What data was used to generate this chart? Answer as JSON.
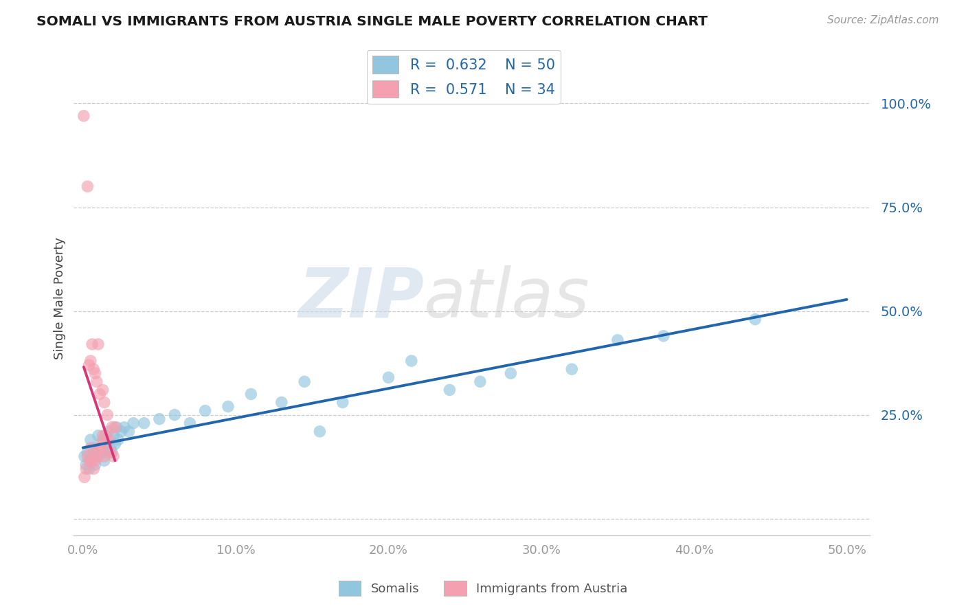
{
  "title": "SOMALI VS IMMIGRANTS FROM AUSTRIA SINGLE MALE POVERTY CORRELATION CHART",
  "source": "Source: ZipAtlas.com",
  "ylabel": "Single Male Poverty",
  "xlim": [
    -0.006,
    0.515
  ],
  "ylim": [
    -0.04,
    1.1
  ],
  "xticks": [
    0.0,
    0.1,
    0.2,
    0.3,
    0.4,
    0.5
  ],
  "xtick_labels": [
    "0.0%",
    "10.0%",
    "20.0%",
    "30.0%",
    "40.0%",
    "50.0%"
  ],
  "ytick_positions": [
    0.0,
    0.25,
    0.5,
    0.75,
    1.0
  ],
  "ytick_labels": [
    "",
    "25.0%",
    "50.0%",
    "75.0%",
    "100.0%"
  ],
  "legend_label1": "Somalis",
  "legend_label2": "Immigrants from Austria",
  "color_blue": "#92c5de",
  "color_pink": "#f4a0b0",
  "color_blue_line": "#2166ac",
  "color_pink_line": "#d63778",
  "somali_x": [
    0.001,
    0.002,
    0.003,
    0.004,
    0.005,
    0.005,
    0.006,
    0.007,
    0.008,
    0.009,
    0.01,
    0.01,
    0.011,
    0.012,
    0.013,
    0.014,
    0.015,
    0.015,
    0.016,
    0.017,
    0.018,
    0.019,
    0.02,
    0.021,
    0.022,
    0.023,
    0.025,
    0.027,
    0.03,
    0.033,
    0.04,
    0.05,
    0.06,
    0.07,
    0.08,
    0.095,
    0.11,
    0.13,
    0.145,
    0.155,
    0.17,
    0.2,
    0.215,
    0.24,
    0.26,
    0.28,
    0.32,
    0.35,
    0.38,
    0.44
  ],
  "somali_y": [
    0.15,
    0.13,
    0.16,
    0.12,
    0.14,
    0.19,
    0.15,
    0.17,
    0.13,
    0.16,
    0.15,
    0.2,
    0.17,
    0.16,
    0.19,
    0.14,
    0.16,
    0.2,
    0.18,
    0.21,
    0.17,
    0.16,
    0.2,
    0.18,
    0.22,
    0.19,
    0.21,
    0.22,
    0.21,
    0.23,
    0.23,
    0.24,
    0.25,
    0.23,
    0.26,
    0.27,
    0.3,
    0.28,
    0.33,
    0.21,
    0.28,
    0.34,
    0.38,
    0.31,
    0.33,
    0.35,
    0.36,
    0.43,
    0.44,
    0.48
  ],
  "austria_x": [
    0.0005,
    0.001,
    0.002,
    0.003,
    0.003,
    0.004,
    0.004,
    0.005,
    0.005,
    0.006,
    0.006,
    0.007,
    0.007,
    0.008,
    0.008,
    0.009,
    0.009,
    0.01,
    0.01,
    0.011,
    0.011,
    0.012,
    0.012,
    0.013,
    0.013,
    0.014,
    0.014,
    0.015,
    0.016,
    0.017,
    0.018,
    0.019,
    0.02,
    0.021
  ],
  "austria_y": [
    0.97,
    0.1,
    0.12,
    0.8,
    0.15,
    0.14,
    0.37,
    0.17,
    0.38,
    0.14,
    0.42,
    0.12,
    0.36,
    0.14,
    0.35,
    0.16,
    0.33,
    0.15,
    0.42,
    0.17,
    0.3,
    0.18,
    0.17,
    0.2,
    0.31,
    0.28,
    0.15,
    0.2,
    0.25,
    0.19,
    0.16,
    0.22,
    0.15,
    0.22
  ],
  "watermark_zip_color": "#c8d8e8",
  "watermark_atlas_color": "#c8c8c8"
}
